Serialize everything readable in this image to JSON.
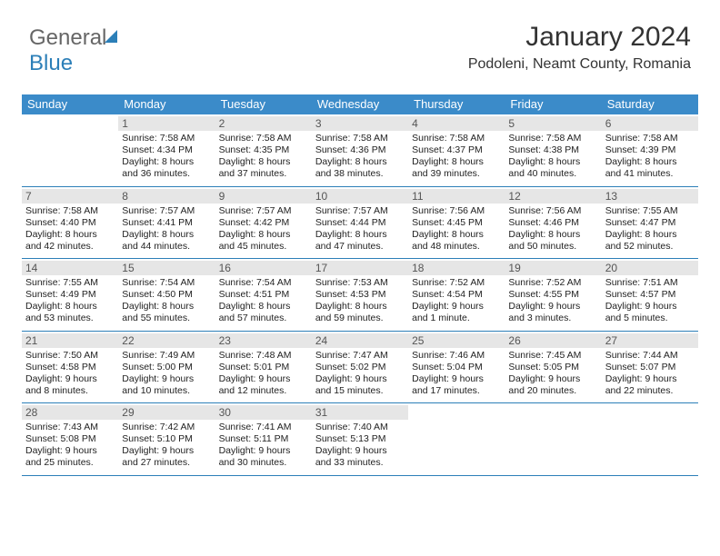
{
  "logo": {
    "part1": "General",
    "part2": "Blue"
  },
  "header": {
    "month_title": "January 2024",
    "location": "Podoleni, Neamt County, Romania"
  },
  "colors": {
    "header_bg": "#3b8bc9",
    "rule": "#2c7fb8",
    "daynum_bg": "#e6e6e6"
  },
  "day_names": [
    "Sunday",
    "Monday",
    "Tuesday",
    "Wednesday",
    "Thursday",
    "Friday",
    "Saturday"
  ],
  "weeks": [
    [
      null,
      {
        "n": "1",
        "t": "Sunrise: 7:58 AM\nSunset: 4:34 PM\nDaylight: 8 hours\nand 36 minutes."
      },
      {
        "n": "2",
        "t": "Sunrise: 7:58 AM\nSunset: 4:35 PM\nDaylight: 8 hours\nand 37 minutes."
      },
      {
        "n": "3",
        "t": "Sunrise: 7:58 AM\nSunset: 4:36 PM\nDaylight: 8 hours\nand 38 minutes."
      },
      {
        "n": "4",
        "t": "Sunrise: 7:58 AM\nSunset: 4:37 PM\nDaylight: 8 hours\nand 39 minutes."
      },
      {
        "n": "5",
        "t": "Sunrise: 7:58 AM\nSunset: 4:38 PM\nDaylight: 8 hours\nand 40 minutes."
      },
      {
        "n": "6",
        "t": "Sunrise: 7:58 AM\nSunset: 4:39 PM\nDaylight: 8 hours\nand 41 minutes."
      }
    ],
    [
      {
        "n": "7",
        "t": "Sunrise: 7:58 AM\nSunset: 4:40 PM\nDaylight: 8 hours\nand 42 minutes."
      },
      {
        "n": "8",
        "t": "Sunrise: 7:57 AM\nSunset: 4:41 PM\nDaylight: 8 hours\nand 44 minutes."
      },
      {
        "n": "9",
        "t": "Sunrise: 7:57 AM\nSunset: 4:42 PM\nDaylight: 8 hours\nand 45 minutes."
      },
      {
        "n": "10",
        "t": "Sunrise: 7:57 AM\nSunset: 4:44 PM\nDaylight: 8 hours\nand 47 minutes."
      },
      {
        "n": "11",
        "t": "Sunrise: 7:56 AM\nSunset: 4:45 PM\nDaylight: 8 hours\nand 48 minutes."
      },
      {
        "n": "12",
        "t": "Sunrise: 7:56 AM\nSunset: 4:46 PM\nDaylight: 8 hours\nand 50 minutes."
      },
      {
        "n": "13",
        "t": "Sunrise: 7:55 AM\nSunset: 4:47 PM\nDaylight: 8 hours\nand 52 minutes."
      }
    ],
    [
      {
        "n": "14",
        "t": "Sunrise: 7:55 AM\nSunset: 4:49 PM\nDaylight: 8 hours\nand 53 minutes."
      },
      {
        "n": "15",
        "t": "Sunrise: 7:54 AM\nSunset: 4:50 PM\nDaylight: 8 hours\nand 55 minutes."
      },
      {
        "n": "16",
        "t": "Sunrise: 7:54 AM\nSunset: 4:51 PM\nDaylight: 8 hours\nand 57 minutes."
      },
      {
        "n": "17",
        "t": "Sunrise: 7:53 AM\nSunset: 4:53 PM\nDaylight: 8 hours\nand 59 minutes."
      },
      {
        "n": "18",
        "t": "Sunrise: 7:52 AM\nSunset: 4:54 PM\nDaylight: 9 hours\nand 1 minute."
      },
      {
        "n": "19",
        "t": "Sunrise: 7:52 AM\nSunset: 4:55 PM\nDaylight: 9 hours\nand 3 minutes."
      },
      {
        "n": "20",
        "t": "Sunrise: 7:51 AM\nSunset: 4:57 PM\nDaylight: 9 hours\nand 5 minutes."
      }
    ],
    [
      {
        "n": "21",
        "t": "Sunrise: 7:50 AM\nSunset: 4:58 PM\nDaylight: 9 hours\nand 8 minutes."
      },
      {
        "n": "22",
        "t": "Sunrise: 7:49 AM\nSunset: 5:00 PM\nDaylight: 9 hours\nand 10 minutes."
      },
      {
        "n": "23",
        "t": "Sunrise: 7:48 AM\nSunset: 5:01 PM\nDaylight: 9 hours\nand 12 minutes."
      },
      {
        "n": "24",
        "t": "Sunrise: 7:47 AM\nSunset: 5:02 PM\nDaylight: 9 hours\nand 15 minutes."
      },
      {
        "n": "25",
        "t": "Sunrise: 7:46 AM\nSunset: 5:04 PM\nDaylight: 9 hours\nand 17 minutes."
      },
      {
        "n": "26",
        "t": "Sunrise: 7:45 AM\nSunset: 5:05 PM\nDaylight: 9 hours\nand 20 minutes."
      },
      {
        "n": "27",
        "t": "Sunrise: 7:44 AM\nSunset: 5:07 PM\nDaylight: 9 hours\nand 22 minutes."
      }
    ],
    [
      {
        "n": "28",
        "t": "Sunrise: 7:43 AM\nSunset: 5:08 PM\nDaylight: 9 hours\nand 25 minutes."
      },
      {
        "n": "29",
        "t": "Sunrise: 7:42 AM\nSunset: 5:10 PM\nDaylight: 9 hours\nand 27 minutes."
      },
      {
        "n": "30",
        "t": "Sunrise: 7:41 AM\nSunset: 5:11 PM\nDaylight: 9 hours\nand 30 minutes."
      },
      {
        "n": "31",
        "t": "Sunrise: 7:40 AM\nSunset: 5:13 PM\nDaylight: 9 hours\nand 33 minutes."
      },
      null,
      null,
      null
    ]
  ]
}
